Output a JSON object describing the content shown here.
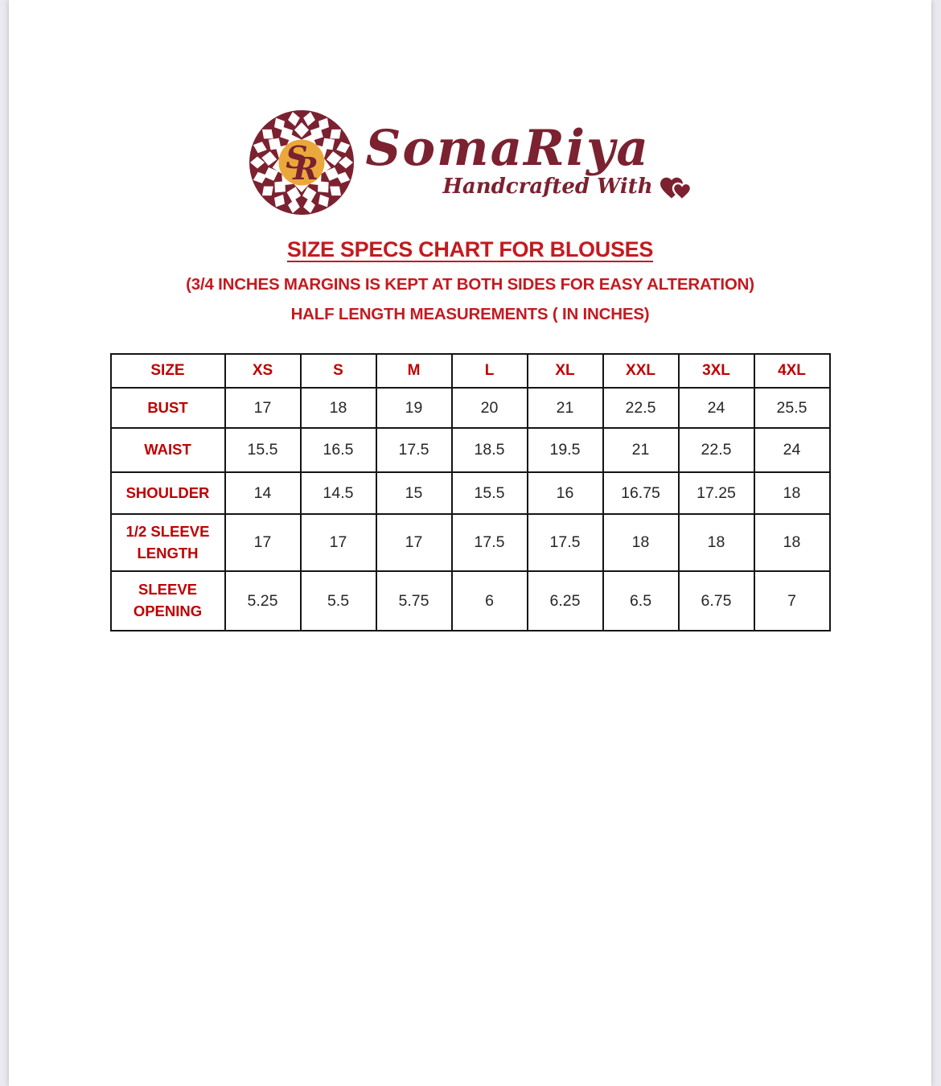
{
  "brand": {
    "name": "SomaRiya",
    "tagline": "Handcrafted With",
    "monogram": "SR"
  },
  "heading": {
    "title": "SIZE SPECS CHART FOR BLOUSES",
    "subtitle": "(3/4 INCHES MARGINS IS KEPT AT BOTH SIDES FOR EASY ALTERATION)",
    "note": "HALF LENGTH MEASUREMENTS ( IN INCHES)"
  },
  "colors": {
    "maroon": "#7b2130",
    "gold": "#eaa83c",
    "heading_red": "#c41a1f",
    "table_label_red": "#c00000",
    "value_text": "#262626",
    "table_border": "#151515",
    "page_background": "#ffffff",
    "viewer_background": "#e9e9ef"
  },
  "table": {
    "header": [
      "SIZE",
      "XS",
      "S",
      "M",
      "L",
      "XL",
      "XXL",
      "3XL",
      "4XL"
    ],
    "rows": [
      {
        "label": "BUST",
        "values": [
          "17",
          "18",
          "19",
          "20",
          "21",
          "22.5",
          "24",
          "25.5"
        ]
      },
      {
        "label": "WAIST",
        "values": [
          "15.5",
          "16.5",
          "17.5",
          "18.5",
          "19.5",
          "21",
          "22.5",
          "24"
        ]
      },
      {
        "label": "SHOULDER",
        "values": [
          "14",
          "14.5",
          "15",
          "15.5",
          "16",
          "16.75",
          "17.25",
          "18"
        ]
      },
      {
        "label": "1/2  SLEEVE LENGTH",
        "values": [
          "17",
          "17",
          "17",
          "17.5",
          "17.5",
          "18",
          "18",
          "18"
        ]
      },
      {
        "label": "SLEEVE OPENING",
        "values": [
          "5.25",
          "5.5",
          "5.75",
          "6",
          "6.25",
          "6.5",
          "6.75",
          "7"
        ]
      }
    ]
  }
}
